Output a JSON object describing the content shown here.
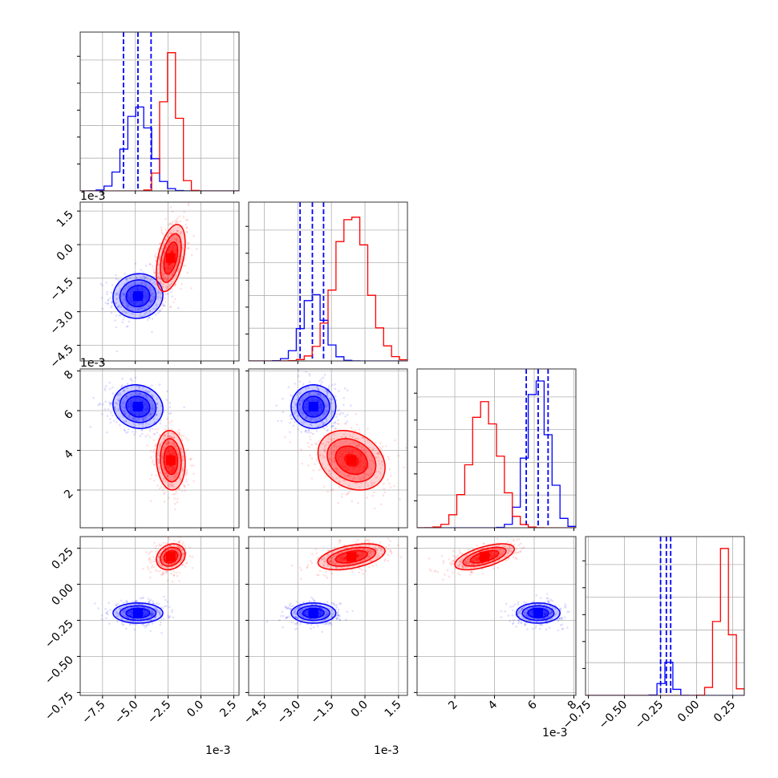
{
  "chart_data": {
    "type": "corner",
    "grid": true,
    "colors": {
      "blue": "#0000ff",
      "red": "#ff0000"
    },
    "variables": [
      {
        "id": "p1",
        "range": [
          -9.2,
          2.9
        ],
        "scale_label": "1e-3",
        "ticks": [
          -7.5,
          -5.0,
          -2.5,
          0.0,
          2.5
        ],
        "tick_labels": [
          "−7.5",
          "−5.0",
          "−2.5",
          "0.0",
          "2.5"
        ]
      },
      {
        "id": "p2",
        "range": [
          -5.2,
          1.9
        ],
        "scale_label": "1e-3",
        "ticks": [
          -4.5,
          -3.0,
          -1.5,
          0.0,
          1.5
        ],
        "tick_labels": [
          "−4.5",
          "−3.0",
          "−1.5",
          "0.0",
          "1.5"
        ]
      },
      {
        "id": "p3",
        "range": [
          0.1,
          8.1
        ],
        "scale_label": "1e-3",
        "ticks": [
          2,
          4,
          6,
          8
        ],
        "tick_labels": [
          "2",
          "4",
          "6",
          "8"
        ]
      },
      {
        "id": "p4",
        "range": [
          -0.77,
          0.33
        ],
        "scale_label": "",
        "ticks": [
          -0.75,
          -0.5,
          -0.25,
          0.0,
          0.25
        ],
        "tick_labels": [
          "−0.75",
          "−0.50",
          "−0.25",
          "0.00",
          "0.25"
        ]
      }
    ],
    "series": [
      {
        "color": "blue",
        "means": [
          -4.8,
          -2.3,
          6.2,
          -0.2
        ],
        "sds": [
          0.95,
          0.5,
          0.55,
          0.035
        ],
        "quantiles": [
          [
            -5.9,
            -4.8,
            -3.8
          ],
          [
            -2.9,
            -2.35,
            -1.85
          ],
          [
            5.6,
            6.2,
            6.7
          ],
          [
            -0.25,
            -0.21,
            -0.18
          ]
        ],
        "hist_peak": [
          0.53,
          0.42,
          0.95,
          0.2
        ]
      },
      {
        "color": "red",
        "means": [
          -2.3,
          -0.6,
          3.5,
          0.19
        ],
        "sds": [
          0.55,
          0.75,
          0.75,
          0.045
        ],
        "quantiles": [],
        "hist_peak": [
          0.95,
          0.9,
          0.75,
          0.92
        ]
      }
    ],
    "correlations": {
      "blue": {
        "1_0": 0.05,
        "2_0": -0.1,
        "2_1": 0.0,
        "3_0": 0.0,
        "3_1": 0.0,
        "3_2": 0.0
      },
      "red": {
        "1_0": 0.45,
        "2_0": -0.1,
        "2_1": -0.25,
        "3_0": 0.2,
        "3_1": 0.45,
        "3_2": 0.6
      }
    }
  }
}
